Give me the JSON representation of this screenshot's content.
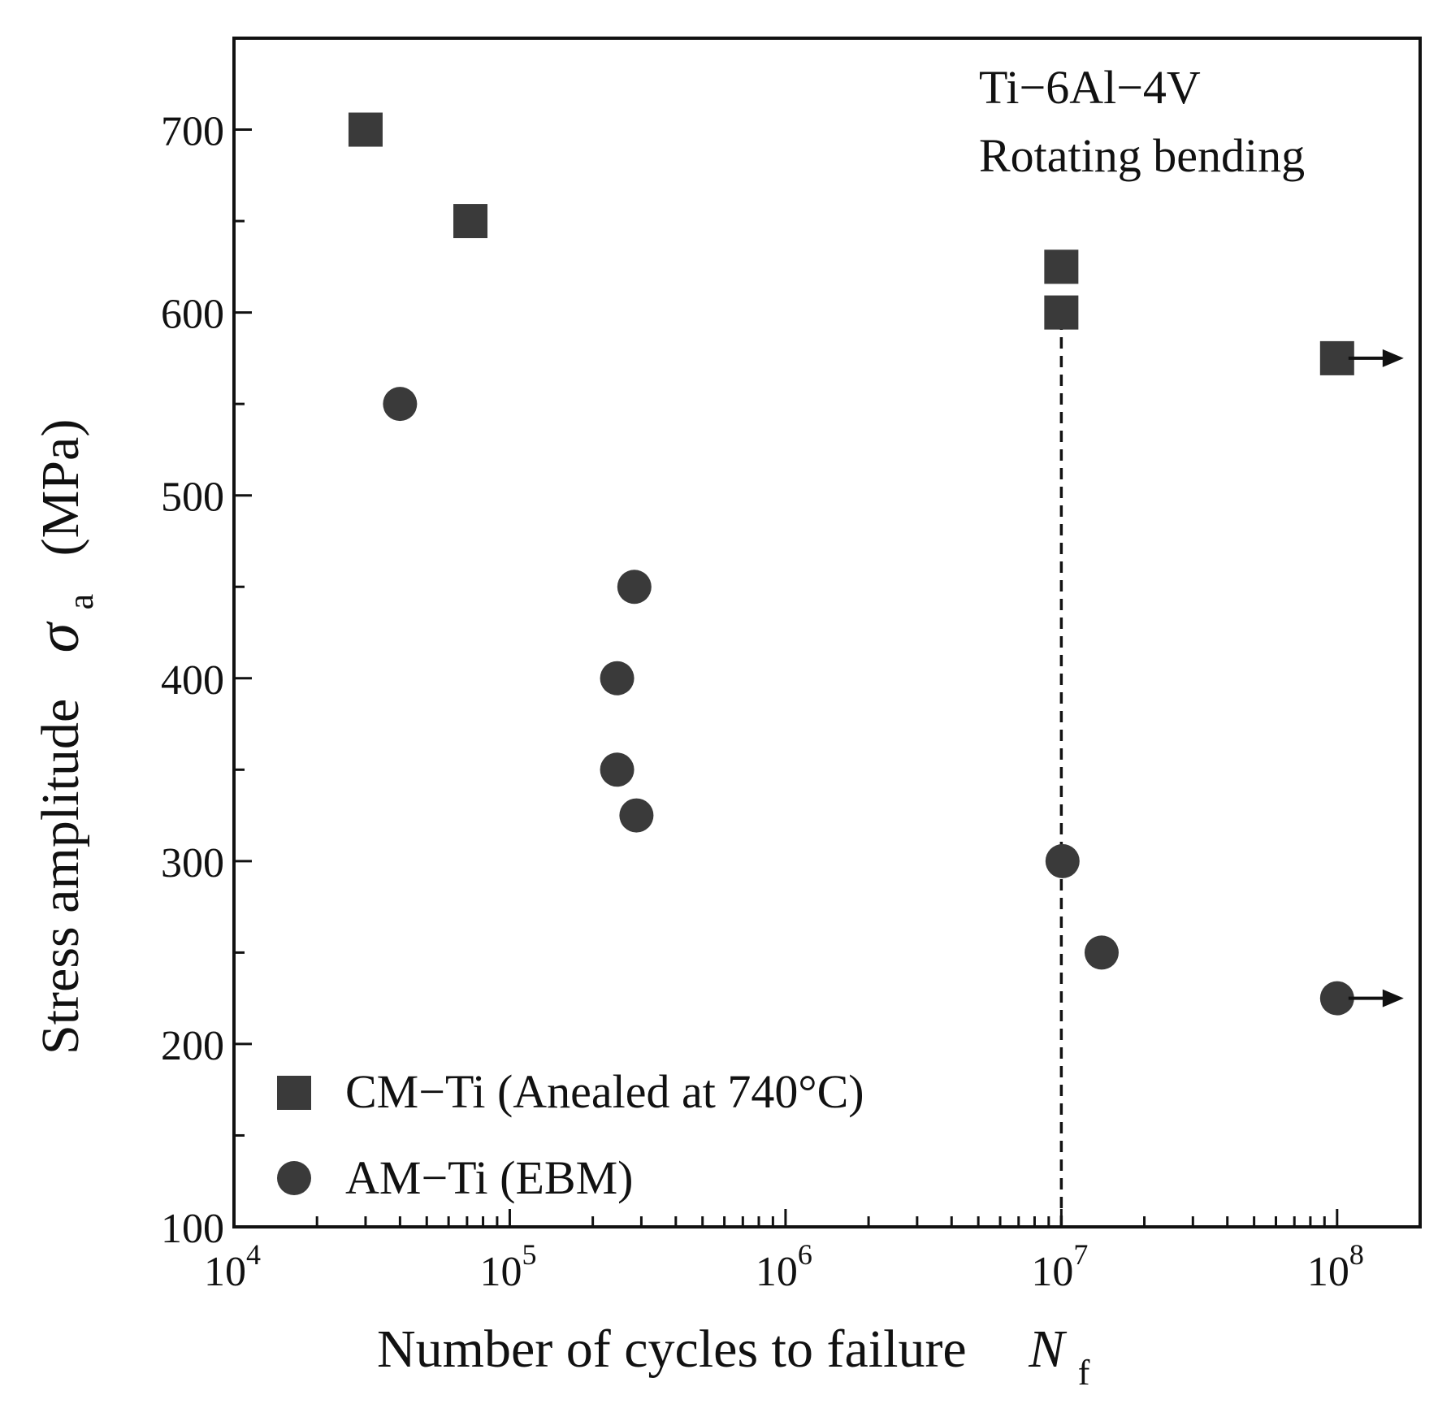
{
  "chart_data": {
    "type": "scatter",
    "x_scale": "log",
    "xlim": [
      10000,
      200000000
    ],
    "ylim": [
      100,
      750
    ],
    "x_ticks_major": [
      {
        "value": 10000,
        "base": "10",
        "exp": "4"
      },
      {
        "value": 100000,
        "base": "10",
        "exp": "5"
      },
      {
        "value": 1000000,
        "base": "10",
        "exp": "6"
      },
      {
        "value": 10000000,
        "base": "10",
        "exp": "7"
      },
      {
        "value": 100000000,
        "base": "10",
        "exp": "8"
      }
    ],
    "y_ticks_major": [
      {
        "value": 100,
        "label": "100"
      },
      {
        "value": 200,
        "label": "200"
      },
      {
        "value": 300,
        "label": "300"
      },
      {
        "value": 400,
        "label": "400"
      },
      {
        "value": 500,
        "label": "500"
      },
      {
        "value": 600,
        "label": "600"
      },
      {
        "value": 700,
        "label": "700"
      }
    ],
    "y_ticks_minor": [
      150,
      250,
      350,
      450,
      550,
      650
    ],
    "xlabel": {
      "main": "Number of cycles to failure",
      "symbol": "N",
      "sub": "f"
    },
    "ylabel": {
      "main": "Stress amplitude",
      "symbol": "σ",
      "sub": "a",
      "unit": "(MPa)"
    },
    "annotation": [
      "Ti−6Al−4V",
      "Rotating bending"
    ],
    "reference_line": {
      "x": 10000000,
      "y_from": 100,
      "y_to": 600,
      "style": "dashed"
    },
    "series": [
      {
        "name": "CM−Ti (Anealed at 740°C)",
        "marker": "square",
        "color": "#3a3a3a",
        "points": [
          {
            "x": 30000,
            "y": 700,
            "runout": false
          },
          {
            "x": 72000,
            "y": 650,
            "runout": false
          },
          {
            "x": 10000000,
            "y": 625,
            "runout": false
          },
          {
            "x": 10000000,
            "y": 600,
            "runout": false
          },
          {
            "x": 100000000,
            "y": 575,
            "runout": true
          }
        ]
      },
      {
        "name": "AM−Ti (EBM)",
        "marker": "circle",
        "color": "#3a3a3a",
        "points": [
          {
            "x": 40000,
            "y": 550,
            "runout": false
          },
          {
            "x": 283000,
            "y": 450,
            "runout": false
          },
          {
            "x": 245000,
            "y": 400,
            "runout": false
          },
          {
            "x": 245000,
            "y": 350,
            "runout": false
          },
          {
            "x": 288000,
            "y": 325,
            "runout": false
          },
          {
            "x": 10100000,
            "y": 300,
            "runout": false
          },
          {
            "x": 14000000,
            "y": 250,
            "runout": false
          },
          {
            "x": 100000000,
            "y": 225,
            "runout": true
          }
        ]
      }
    ],
    "legend_position": "bottom-left"
  }
}
